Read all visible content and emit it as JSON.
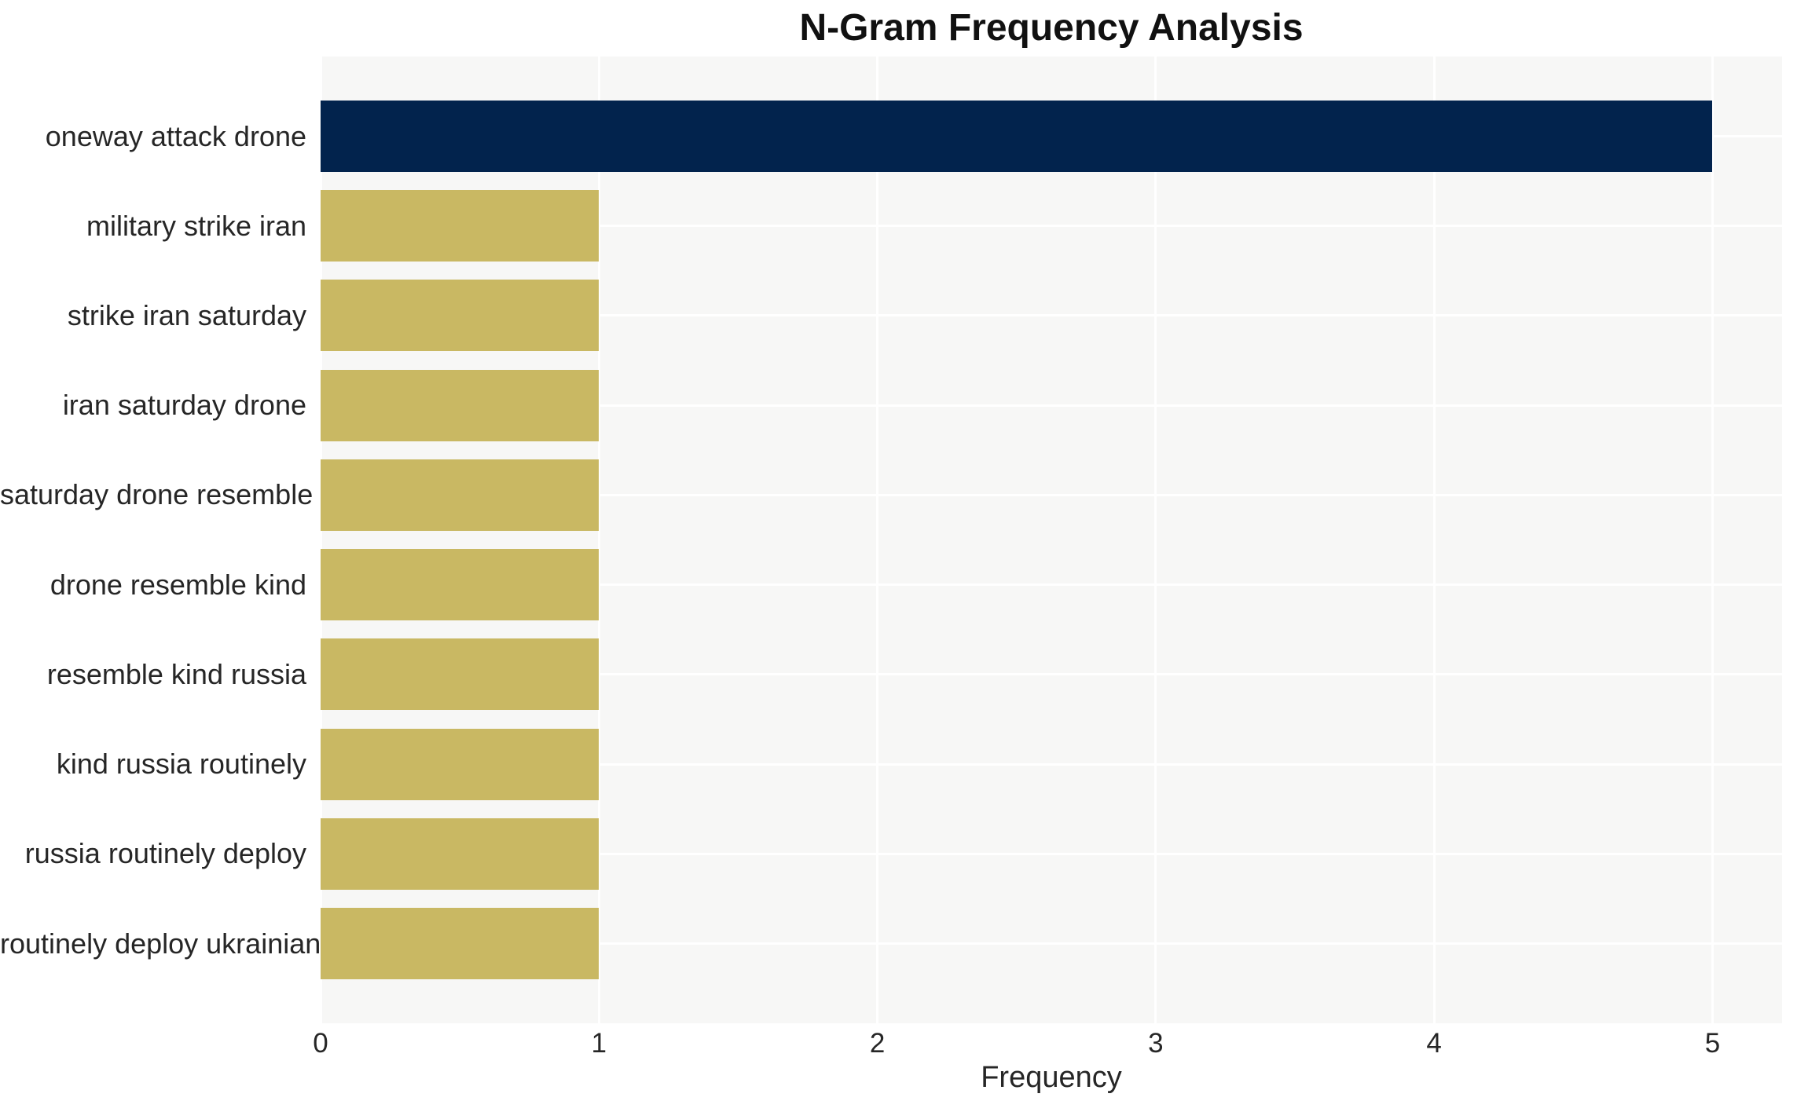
{
  "chart_data": {
    "type": "bar",
    "orientation": "horizontal",
    "title": "N-Gram Frequency Analysis",
    "xlabel": "Frequency",
    "ylabel": "",
    "categories": [
      "oneway attack drone",
      "military strike iran",
      "strike iran saturday",
      "iran saturday drone",
      "saturday drone resemble",
      "drone resemble kind",
      "resemble kind russia",
      "kind russia routinely",
      "russia routinely deploy",
      "routinely deploy ukrainian"
    ],
    "values": [
      5,
      1,
      1,
      1,
      1,
      1,
      1,
      1,
      1,
      1
    ],
    "bar_colors": [
      "#02234d",
      "#c9b863",
      "#c9b863",
      "#c9b863",
      "#c9b863",
      "#c9b863",
      "#c9b863",
      "#c9b863",
      "#c9b863",
      "#c9b863"
    ],
    "x_ticks": [
      0,
      1,
      2,
      3,
      4,
      5
    ],
    "xlim": [
      0,
      5.25
    ],
    "grid": true,
    "legend": false,
    "colors": {
      "bar_highlight": "#02234d",
      "bar_default": "#c9b863",
      "plot_background": "#f7f7f6",
      "figure_background": "#ffffff",
      "gridline": "#ffffff",
      "tick_text": "#262626",
      "title_text": "#111111"
    }
  }
}
